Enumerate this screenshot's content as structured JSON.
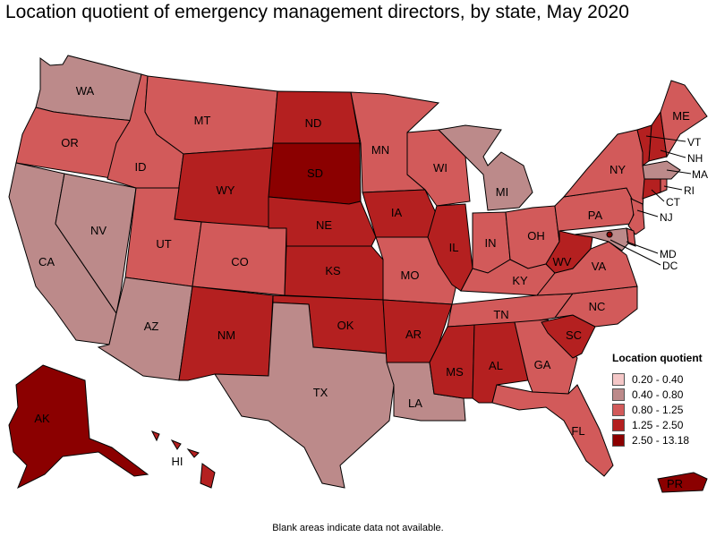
{
  "title": "Location quotient of emergency management directors, by state, May 2020",
  "footnote": "Blank areas indicate data not available.",
  "legend": {
    "title": "Location quotient",
    "items": [
      {
        "label": "0.20 - 0.40",
        "color": "#f4c7c7"
      },
      {
        "label": "0.40 - 0.80",
        "color": "#bc8a8a"
      },
      {
        "label": "0.80 - 1.25",
        "color": "#d25a5a"
      },
      {
        "label": "1.25 - 2.50",
        "color": "#b42020"
      },
      {
        "label": "2.50 - 13.18",
        "color": "#8b0000"
      }
    ]
  },
  "states": {
    "WA": {
      "label": "WA",
      "class": 1
    },
    "OR": {
      "label": "OR",
      "class": 2
    },
    "CA": {
      "label": "CA",
      "class": 1
    },
    "NV": {
      "label": "NV",
      "class": 1
    },
    "ID": {
      "label": "ID",
      "class": 2
    },
    "MT": {
      "label": "MT",
      "class": 2
    },
    "WY": {
      "label": "WY",
      "class": 3
    },
    "UT": {
      "label": "UT",
      "class": 2
    },
    "AZ": {
      "label": "AZ",
      "class": 1
    },
    "CO": {
      "label": "CO",
      "class": 2
    },
    "NM": {
      "label": "NM",
      "class": 3
    },
    "ND": {
      "label": "ND",
      "class": 3
    },
    "SD": {
      "label": "SD",
      "class": 4
    },
    "NE": {
      "label": "NE",
      "class": 3
    },
    "KS": {
      "label": "KS",
      "class": 3
    },
    "OK": {
      "label": "OK",
      "class": 3
    },
    "TX": {
      "label": "TX",
      "class": 1
    },
    "MN": {
      "label": "MN",
      "class": 2
    },
    "IA": {
      "label": "IA",
      "class": 3
    },
    "MO": {
      "label": "MO",
      "class": 2
    },
    "AR": {
      "label": "AR",
      "class": 3
    },
    "LA": {
      "label": "LA",
      "class": 1
    },
    "WI": {
      "label": "WI",
      "class": 2
    },
    "IL": {
      "label": "IL",
      "class": 3
    },
    "MI": {
      "label": "MI",
      "class": 1
    },
    "IN": {
      "label": "IN",
      "class": 2
    },
    "OH": {
      "label": "OH",
      "class": 2
    },
    "KY": {
      "label": "KY",
      "class": 2
    },
    "TN": {
      "label": "TN",
      "class": 2
    },
    "MS": {
      "label": "MS",
      "class": 3
    },
    "AL": {
      "label": "AL",
      "class": 3
    },
    "GA": {
      "label": "GA",
      "class": 2
    },
    "FL": {
      "label": "FL",
      "class": 2
    },
    "SC": {
      "label": "SC",
      "class": 3
    },
    "NC": {
      "label": "NC",
      "class": 2
    },
    "VA": {
      "label": "VA",
      "class": 2
    },
    "WV": {
      "label": "WV",
      "class": 3
    },
    "PA": {
      "label": "PA",
      "class": 2
    },
    "NY": {
      "label": "NY",
      "class": 2
    },
    "ME": {
      "label": "ME",
      "class": 2
    },
    "VT": {
      "label": "VT",
      "class": 3
    },
    "NH": {
      "label": "NH",
      "class": 3
    },
    "MA": {
      "label": "MA",
      "class": 1
    },
    "RI": {
      "label": "RI",
      "class": 2
    },
    "CT": {
      "label": "CT",
      "class": 3
    },
    "NJ": {
      "label": "NJ",
      "class": 2
    },
    "DE": {
      "label": "",
      "class": 2
    },
    "MD": {
      "label": "MD",
      "class": 1
    },
    "DC": {
      "label": "DC",
      "class": 4
    },
    "AK": {
      "label": "AK",
      "class": 4
    },
    "HI": {
      "label": "HI",
      "class": 3
    },
    "PR": {
      "label": "PR",
      "class": 4
    }
  }
}
